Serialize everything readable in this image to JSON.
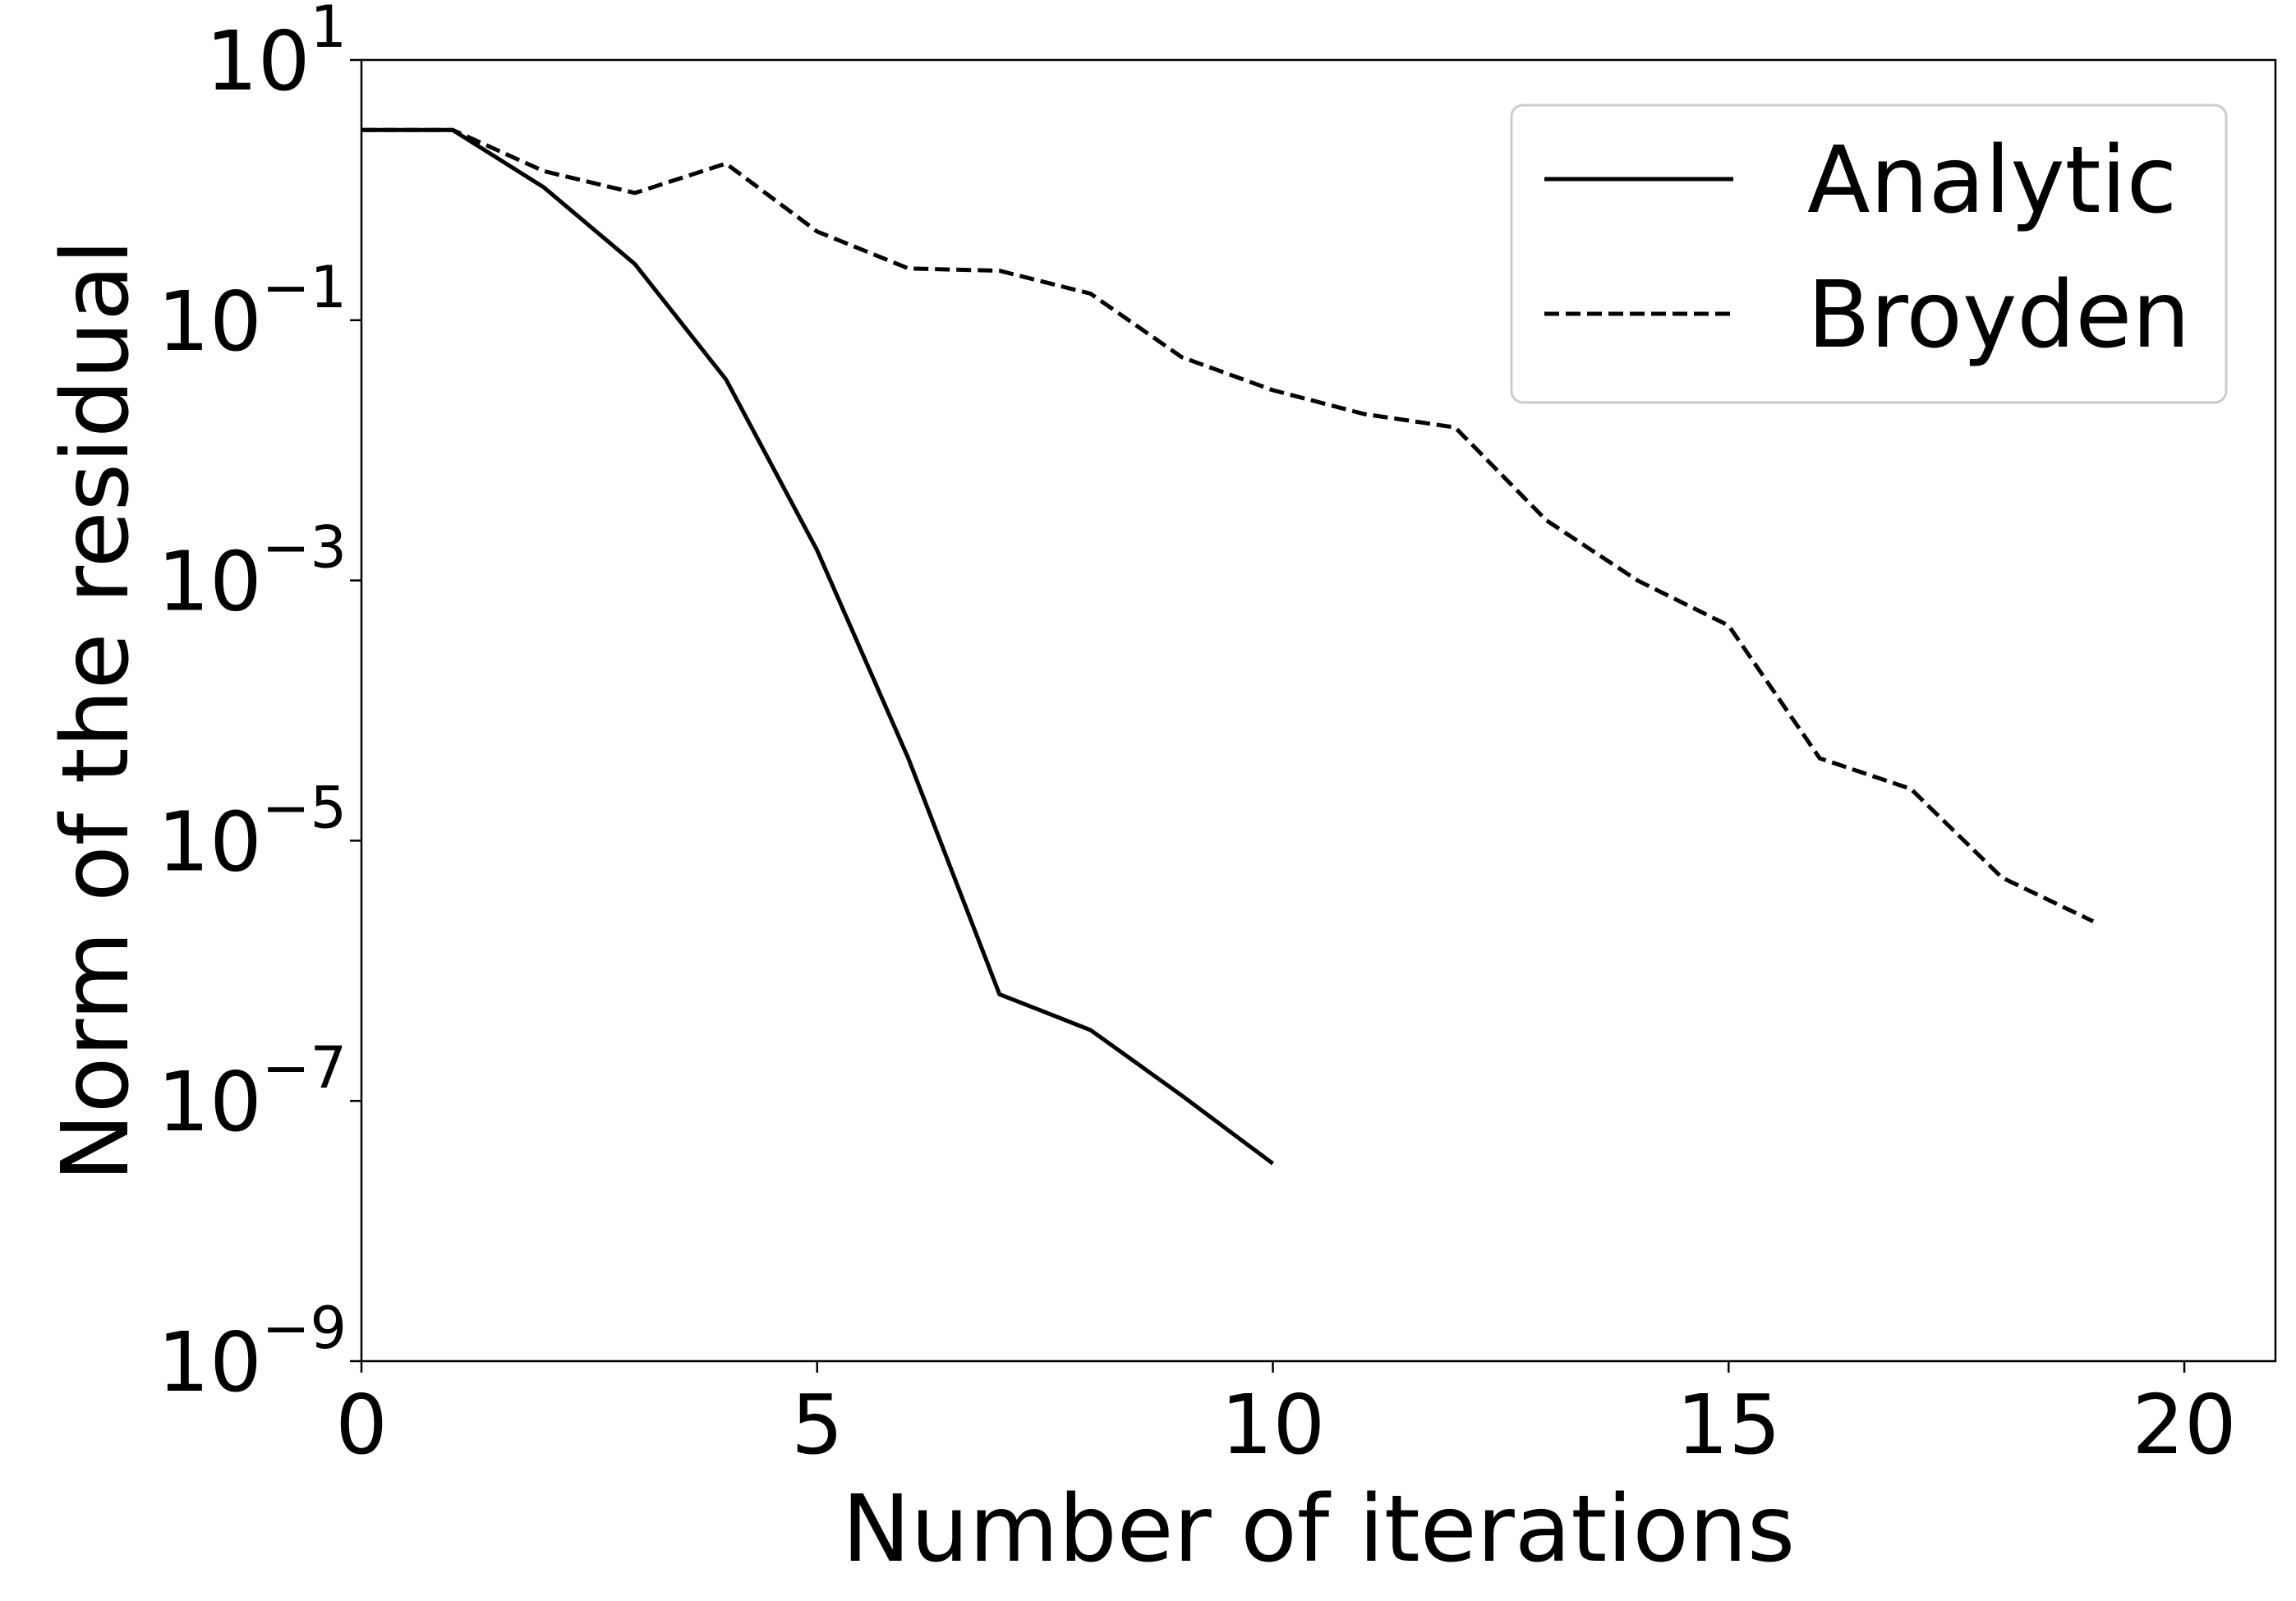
{
  "chart_data": {
    "type": "line",
    "xlabel": "Number of iterations",
    "ylabel": "Norm of the residual",
    "xlim": [
      0,
      21
    ],
    "ylim": [
      1e-09,
      10
    ],
    "yscale": "log",
    "grid": false,
    "legend_position": "top-right",
    "x_ticks": [
      0,
      5,
      10,
      15,
      20
    ],
    "x_tick_labels": [
      "0",
      "5",
      "10",
      "15",
      "20"
    ],
    "y_ticks": [
      {
        "value": 10,
        "base": "10",
        "exp": "1"
      },
      {
        "value": 0.1,
        "base": "10",
        "exp": "−1"
      },
      {
        "value": 0.001,
        "base": "10",
        "exp": "−3"
      },
      {
        "value": 1e-05,
        "base": "10",
        "exp": "−5"
      },
      {
        "value": 1e-07,
        "base": "10",
        "exp": "−7"
      },
      {
        "value": 1e-09,
        "base": "10",
        "exp": "−9"
      }
    ],
    "series": [
      {
        "name": "Analytic",
        "style": "solid",
        "color": "#000000",
        "x": [
          0,
          1,
          2,
          3,
          4,
          5,
          6,
          7,
          8,
          9,
          10
        ],
        "y": [
          2.9,
          2.9,
          1.05,
          0.27,
          0.035,
          0.0017,
          4.3e-05,
          6.6e-07,
          3.5e-07,
          1.1e-07,
          3.3e-08
        ]
      },
      {
        "name": "Broyden",
        "style": "dashed",
        "color": "#000000",
        "x": [
          0,
          1,
          2,
          3,
          4,
          5,
          6,
          7,
          8,
          9,
          10,
          11,
          12,
          13,
          14,
          15,
          16,
          17,
          18,
          19
        ],
        "y": [
          2.9,
          2.9,
          1.4,
          0.95,
          1.6,
          0.48,
          0.25,
          0.24,
          0.16,
          0.052,
          0.029,
          0.019,
          0.015,
          0.0029,
          0.001,
          0.00045,
          4.3e-05,
          2.5e-05,
          5.2e-06,
          2.4e-06
        ]
      }
    ]
  }
}
